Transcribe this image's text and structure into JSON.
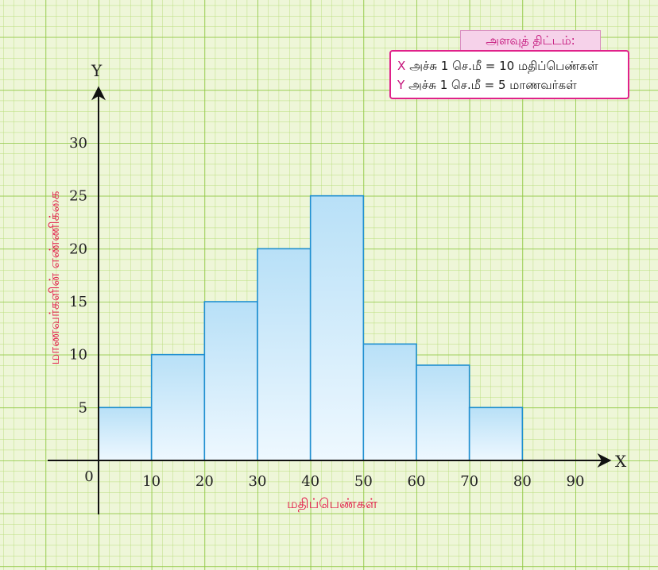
{
  "chart_data": {
    "type": "histogram",
    "bins": [
      {
        "from": 0,
        "to": 10,
        "value": 5
      },
      {
        "from": 10,
        "to": 20,
        "value": 10
      },
      {
        "from": 20,
        "to": 30,
        "value": 15
      },
      {
        "from": 30,
        "to": 40,
        "value": 20
      },
      {
        "from": 40,
        "to": 50,
        "value": 25
      },
      {
        "from": 50,
        "to": 60,
        "value": 11
      },
      {
        "from": 60,
        "to": 70,
        "value": 9
      },
      {
        "from": 70,
        "to": 80,
        "value": 5
      }
    ],
    "xlabel": "மதிப்பெண்கள்",
    "ylabel": "மாணவர்களின் எண்ணிக்கை",
    "x_axis_letter": "X",
    "y_axis_letter": "Y",
    "origin_label": "0",
    "x_ticks": [
      10,
      20,
      30,
      40,
      50,
      60,
      70,
      80,
      90
    ],
    "y_ticks": [
      5,
      10,
      15,
      20,
      25,
      30
    ],
    "xlim": [
      0,
      90
    ],
    "ylim": [
      0,
      30
    ],
    "grid": true
  },
  "scale": {
    "title": "அளவுத் திட்டம்:",
    "x_axis_letter": "X",
    "x_line": "அச்சு 1 செ.மீ = 10 மதிப்பெண்கள்",
    "y_axis_letter": "Y",
    "y_line": "அச்சு 1 செ.மீ =   5 மாணவர்கள்"
  },
  "colors": {
    "background": "#eef6d8",
    "grid_major": "#8cc63f",
    "grid_minor": "#b8dd7a",
    "bar_top": "#b8e0f7",
    "bar_bottom": "#eef8ff",
    "bar_edge": "#1f8fd0",
    "label_accent": "#e31a4a",
    "scale_accent": "#e0218a"
  }
}
